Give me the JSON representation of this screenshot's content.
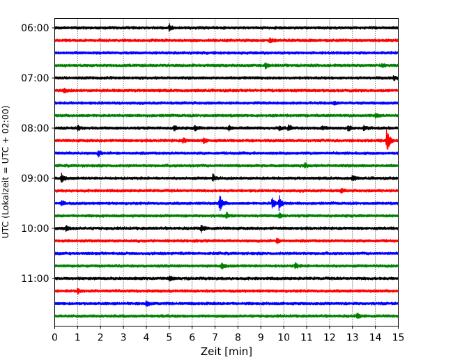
{
  "chart_data": {
    "type": "line",
    "title": "",
    "xlabel": "Zeit  [min]",
    "ylabel": "UTC (Lokalzeit = UTC + 02:00)",
    "xlim": [
      0,
      15
    ],
    "x_ticks": [
      0,
      1,
      2,
      3,
      4,
      5,
      6,
      7,
      8,
      9,
      10,
      11,
      12,
      13,
      14,
      15
    ],
    "x_tick_labels": [
      "0",
      "1",
      "2",
      "3",
      "4",
      "5",
      "6",
      "7",
      "8",
      "9",
      "10",
      "11",
      "12",
      "13",
      "14",
      "15"
    ],
    "y_ticks": [
      "06:00",
      "07:00",
      "08:00",
      "09:00",
      "10:00",
      "11:00"
    ],
    "y_tick_rows": [
      0,
      4,
      8,
      12,
      16,
      20
    ],
    "grid": "vertical-dotted",
    "row_interval_minutes": 15,
    "row_colors": [
      "#000000",
      "#ff0000",
      "#0000ff",
      "#008000"
    ],
    "rows": [
      {
        "time": "06:00",
        "events": [
          {
            "t": 5.0,
            "amp": 0.35
          }
        ]
      },
      {
        "time": "06:15",
        "events": [
          {
            "t": 9.4,
            "amp": 0.25
          }
        ]
      },
      {
        "time": "06:30",
        "events": []
      },
      {
        "time": "06:45",
        "events": [
          {
            "t": 9.2,
            "amp": 0.3
          },
          {
            "t": 14.3,
            "amp": 0.2
          }
        ]
      },
      {
        "time": "07:00",
        "events": [
          {
            "t": 14.8,
            "amp": 0.25
          }
        ]
      },
      {
        "time": "07:15",
        "events": [
          {
            "t": 0.4,
            "amp": 0.25
          }
        ]
      },
      {
        "time": "07:30",
        "events": [
          {
            "t": 12.2,
            "amp": 0.2
          }
        ]
      },
      {
        "time": "07:45",
        "events": [
          {
            "t": 14.0,
            "amp": 0.25
          }
        ]
      },
      {
        "time": "08:00",
        "events": [
          {
            "t": 1.0,
            "amp": 0.3
          },
          {
            "t": 5.2,
            "amp": 0.3
          },
          {
            "t": 6.1,
            "amp": 0.35
          },
          {
            "t": 7.6,
            "amp": 0.25
          },
          {
            "t": 9.8,
            "amp": 0.3
          },
          {
            "t": 10.2,
            "amp": 0.35
          },
          {
            "t": 11.7,
            "amp": 0.2
          },
          {
            "t": 12.8,
            "amp": 0.3
          },
          {
            "t": 13.5,
            "amp": 0.25
          }
        ]
      },
      {
        "time": "08:15",
        "events": [
          {
            "t": 5.6,
            "amp": 0.3
          },
          {
            "t": 6.5,
            "amp": 0.35
          },
          {
            "t": 14.5,
            "amp": 1.4
          }
        ]
      },
      {
        "time": "08:30",
        "events": [
          {
            "t": 1.9,
            "amp": 0.3
          }
        ]
      },
      {
        "time": "08:45",
        "events": [
          {
            "t": 10.9,
            "amp": 0.3
          }
        ]
      },
      {
        "time": "09:00",
        "events": [
          {
            "t": 0.3,
            "amp": 0.45
          },
          {
            "t": 6.9,
            "amp": 0.4
          },
          {
            "t": 13.0,
            "amp": 0.3
          }
        ]
      },
      {
        "time": "09:15",
        "events": [
          {
            "t": 12.5,
            "amp": 0.2
          }
        ]
      },
      {
        "time": "09:30",
        "events": [
          {
            "t": 0.3,
            "amp": 0.3
          },
          {
            "t": 7.2,
            "amp": 0.95
          },
          {
            "t": 9.5,
            "amp": 0.7
          },
          {
            "t": 9.8,
            "amp": 0.8
          }
        ]
      },
      {
        "time": "09:45",
        "events": [
          {
            "t": 7.5,
            "amp": 0.3
          },
          {
            "t": 9.8,
            "amp": 0.3
          }
        ]
      },
      {
        "time": "10:00",
        "events": [
          {
            "t": 0.5,
            "amp": 0.3
          },
          {
            "t": 6.4,
            "amp": 0.4
          }
        ]
      },
      {
        "time": "10:15",
        "events": [
          {
            "t": 9.7,
            "amp": 0.25
          }
        ]
      },
      {
        "time": "10:30",
        "events": []
      },
      {
        "time": "10:45",
        "events": [
          {
            "t": 7.3,
            "amp": 0.3
          },
          {
            "t": 10.5,
            "amp": 0.3
          }
        ]
      },
      {
        "time": "11:00",
        "events": [
          {
            "t": 5.0,
            "amp": 0.25
          }
        ]
      },
      {
        "time": "11:15",
        "events": [
          {
            "t": 1.0,
            "amp": 0.25
          }
        ]
      },
      {
        "time": "11:30",
        "events": [
          {
            "t": 4.0,
            "amp": 0.25
          }
        ]
      },
      {
        "time": "11:45",
        "events": [
          {
            "t": 13.2,
            "amp": 0.3
          }
        ]
      }
    ]
  }
}
